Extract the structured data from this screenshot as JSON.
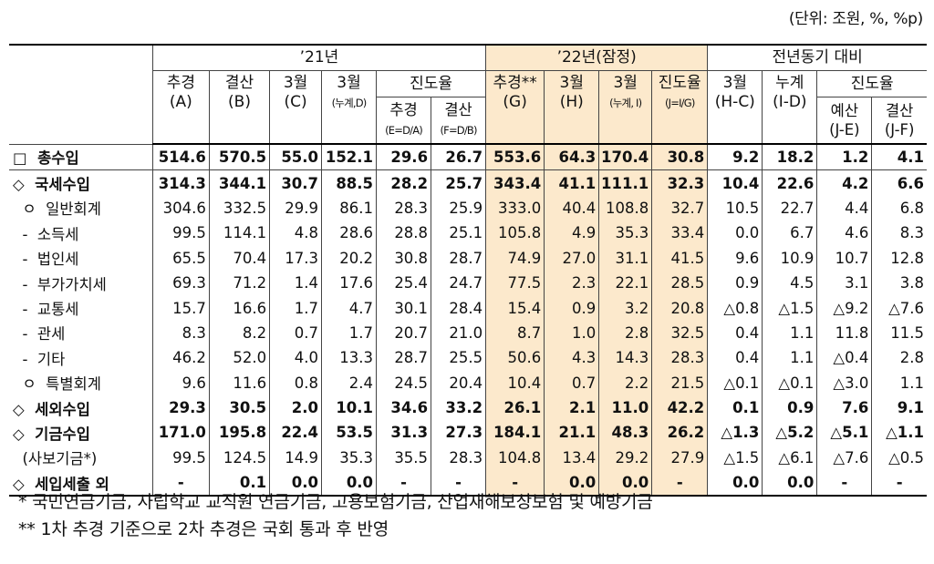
{
  "unit_note": "(단위: 조원, %, %p)",
  "header": {
    "group_21": "’21년",
    "group_22": "’22년(잠정)",
    "group_yoy": "전년동기 대비",
    "progress_21": "진도율",
    "progress_yoy": "진도율",
    "cols": {
      "c1_a": "추경",
      "c1_b": "(A)",
      "c2_a": "결산",
      "c2_b": "(B)",
      "c3_a": "3월",
      "c3_b": "(C)",
      "c4_a": "3월",
      "c4_b": "(누계,D)",
      "c5_a": "추경",
      "c5_b": "(E=D/A)",
      "c6_a": "결산",
      "c6_b": "(F=D/B)",
      "c7_a": "추경**",
      "c7_b": "(G)",
      "c8_a": "3월",
      "c8_b": "(H)",
      "c9_a": "3월",
      "c9_b": "(누계, I)",
      "c10_a": "진도율",
      "c10_b": "(J=I/G)",
      "c11_a": "3월",
      "c11_b": "(H-C)",
      "c12_a": "누계",
      "c12_b": "(I-D)",
      "c13_a": "예산",
      "c13_b": "(J-E)",
      "c14_a": "결산",
      "c14_b": "(J-F)"
    }
  },
  "rows": [
    {
      "label": "□  총수입",
      "values": [
        "514.6",
        "570.5",
        "55.0",
        "152.1",
        "29.6",
        "26.7",
        "553.6",
        "64.3",
        "170.4",
        "30.8",
        "9.2",
        "18.2",
        "1.2",
        "4.1"
      ]
    },
    {
      "label": "◇  국세수입",
      "values": [
        "314.3",
        "344.1",
        "30.7",
        "88.5",
        "28.2",
        "25.7",
        "343.4",
        "41.1",
        "111.1",
        "32.3",
        "10.4",
        "22.6",
        "4.2",
        "6.6"
      ]
    },
    {
      "label": "  ㅇ  일반회계",
      "values": [
        "304.6",
        "332.5",
        "29.9",
        "86.1",
        "28.3",
        "25.9",
        "333.0",
        "40.4",
        "108.8",
        "32.7",
        "10.5",
        "22.7",
        "4.4",
        "6.8"
      ]
    },
    {
      "label": "  -  소득세",
      "values": [
        "99.5",
        "114.1",
        "4.8",
        "28.6",
        "28.8",
        "25.1",
        "105.8",
        "4.9",
        "35.3",
        "33.4",
        "0.0",
        "6.7",
        "4.6",
        "8.3"
      ]
    },
    {
      "label": "  -  법인세",
      "values": [
        "65.5",
        "70.4",
        "17.3",
        "20.2",
        "30.8",
        "28.7",
        "74.9",
        "27.0",
        "31.1",
        "41.5",
        "9.6",
        "10.9",
        "10.7",
        "12.8"
      ]
    },
    {
      "label": "  -  부가가치세",
      "values": [
        "69.3",
        "71.2",
        "1.4",
        "17.6",
        "25.4",
        "24.7",
        "77.5",
        "2.3",
        "22.1",
        "28.5",
        "0.9",
        "4.5",
        "3.1",
        "3.8"
      ]
    },
    {
      "label": "  -  교통세",
      "values": [
        "15.7",
        "16.6",
        "1.7",
        "4.7",
        "30.1",
        "28.4",
        "15.4",
        "0.9",
        "3.2",
        "20.8",
        "△0.8",
        "△1.5",
        "△9.2",
        "△7.6"
      ]
    },
    {
      "label": "  -  관세",
      "values": [
        "8.3",
        "8.2",
        "0.7",
        "1.7",
        "20.7",
        "21.0",
        "8.7",
        "1.0",
        "2.8",
        "32.5",
        "0.4",
        "1.1",
        "11.8",
        "11.5"
      ]
    },
    {
      "label": "  -  기타",
      "values": [
        "46.2",
        "52.0",
        "4.0",
        "13.3",
        "28.7",
        "25.5",
        "50.6",
        "4.3",
        "14.3",
        "28.3",
        "0.4",
        "1.1",
        "△0.4",
        "2.8"
      ]
    },
    {
      "label": "  ㅇ  특별회계",
      "values": [
        "9.6",
        "11.6",
        "0.8",
        "2.4",
        "24.5",
        "20.4",
        "10.4",
        "0.7",
        "2.2",
        "21.5",
        "△0.1",
        "△0.1",
        "△3.0",
        "1.1"
      ]
    },
    {
      "label": "◇  세외수입",
      "values": [
        "29.3",
        "30.5",
        "2.0",
        "10.1",
        "34.6",
        "33.2",
        "26.1",
        "2.1",
        "11.0",
        "42.2",
        "0.1",
        "0.9",
        "7.6",
        "9.1"
      ]
    },
    {
      "label": "◇  기금수입",
      "values": [
        "171.0",
        "195.8",
        "22.4",
        "53.5",
        "31.3",
        "27.3",
        "184.1",
        "21.1",
        "48.3",
        "26.2",
        "△1.3",
        "△5.2",
        "△5.1",
        "△1.1"
      ]
    },
    {
      "label": "  (사보기금*)",
      "values": [
        "99.5",
        "124.5",
        "14.9",
        "35.3",
        "35.5",
        "28.3",
        "104.8",
        "13.4",
        "29.2",
        "27.9",
        "△1.5",
        "△6.1",
        "△7.6",
        "△0.5"
      ]
    },
    {
      "label": "◇  세입세출 외",
      "values": [
        "-",
        "0.1",
        "0.0",
        "0.0",
        "-",
        "-",
        "-",
        "0.0",
        "0.0",
        "-",
        "0.0",
        "0.0",
        "-",
        "-"
      ]
    }
  ],
  "notes": [
    " *  국민연금기금, 사립학교 교직원 연금기금, 고용보험기금, 산업재해보상보험 및 예방기금",
    "**  1차 추경 기준으로 2차 추경은 국회 통과 후 반영"
  ],
  "colors": {
    "highlight": "#fce9cc"
  }
}
